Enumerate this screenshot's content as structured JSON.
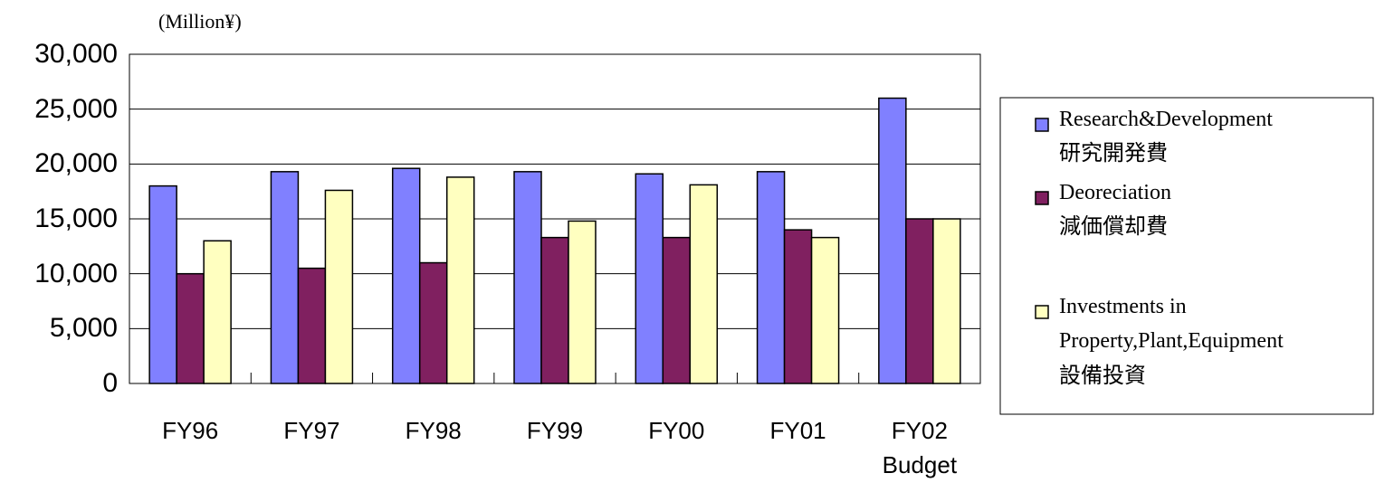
{
  "chart_data": {
    "type": "bar",
    "y_label": "(Million¥)",
    "categories": [
      "FY96",
      "FY97",
      "FY98",
      "FY99",
      "FY00",
      "FY01",
      "FY02\nBudget"
    ],
    "series": [
      {
        "name": "Research&Development\n研究開発費",
        "color": "#8080ff",
        "values": [
          18000,
          19300,
          19600,
          19300,
          19100,
          19300,
          26000
        ]
      },
      {
        "name": "Deoreciation\n減価償却費",
        "color": "#802060",
        "values": [
          10000,
          10500,
          11000,
          13300,
          13300,
          14000,
          15000
        ]
      },
      {
        "name": "Investments in\nProperty,Plant,Equipment\n設備投資",
        "color": "#ffffc0",
        "values": [
          13000,
          17600,
          18800,
          14800,
          18100,
          13300,
          15000
        ]
      }
    ],
    "ylim": [
      0,
      30000
    ],
    "yticks": [
      {
        "value": 0,
        "label": "0"
      },
      {
        "value": 5000,
        "label": "5,000"
      },
      {
        "value": 10000,
        "label": "10,000"
      },
      {
        "value": 15000,
        "label": "15,000"
      },
      {
        "value": 20000,
        "label": "20,000"
      },
      {
        "value": 25000,
        "label": "25,000"
      },
      {
        "value": 30000,
        "label": "30,000"
      }
    ],
    "grid": true,
    "legend": "right"
  }
}
